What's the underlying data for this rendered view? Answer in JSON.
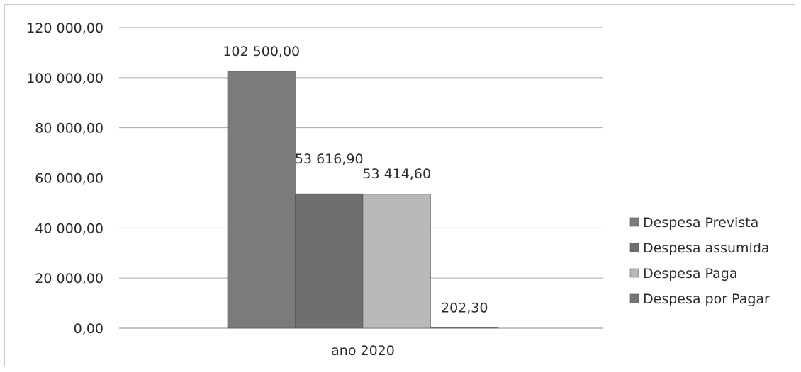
{
  "chart_data": {
    "type": "bar",
    "categories": [
      "ano 2020"
    ],
    "series": [
      {
        "name": "Despesa Prevista",
        "values": [
          102500.0
        ],
        "label": "102 500,00",
        "color": "#7b7b7b"
      },
      {
        "name": "Despesa assumida",
        "values": [
          53616.9
        ],
        "label": "53 616,90",
        "color": "#6f6f6f"
      },
      {
        "name": "Despesa Paga",
        "values": [
          53414.6
        ],
        "label": "53 414,60",
        "color": "#b9b9b9"
      },
      {
        "name": "Despesa por Pagar",
        "values": [
          202.3
        ],
        "label": "202,30",
        "color": "#777777"
      }
    ],
    "ylim": [
      0,
      120000
    ],
    "y_ticks": [
      {
        "value": 0,
        "label": "0,00"
      },
      {
        "value": 20000,
        "label": "20 000,00"
      },
      {
        "value": 40000,
        "label": "40 000,00"
      },
      {
        "value": 60000,
        "label": "60 000,00"
      },
      {
        "value": 80000,
        "label": "80 000,00"
      },
      {
        "value": 100000,
        "label": "100 000,00"
      },
      {
        "value": 120000,
        "label": "120 000,00"
      }
    ],
    "grid": true,
    "legend_position": "right",
    "title": "",
    "xlabel": "",
    "ylabel": ""
  }
}
